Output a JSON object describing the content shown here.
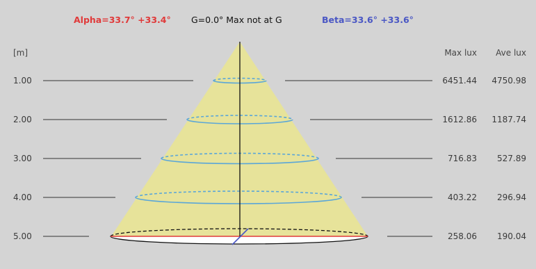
{
  "header": {
    "alpha_label": "Alpha=33.7° +33.4°",
    "center_label": "G=0.0°  Max not  at G",
    "beta_label": "Beta=33.6° +33.6°"
  },
  "table": {
    "distance_unit": "[m]",
    "max_lux_label": "Max lux",
    "ave_lux_label": "Ave lux",
    "rows": [
      {
        "distance": "1.00",
        "max_lux": "6451.44",
        "ave_lux": "4750.98"
      },
      {
        "distance": "2.00",
        "max_lux": "1612.86",
        "ave_lux": "1187.74"
      },
      {
        "distance": "3.00",
        "max_lux": "716.83",
        "ave_lux": "527.89"
      },
      {
        "distance": "4.00",
        "max_lux": "403.22",
        "ave_lux": "296.94"
      },
      {
        "distance": "5.00",
        "max_lux": "258.06",
        "ave_lux": "190.04"
      }
    ]
  },
  "colors": {
    "background": "#d4d4d4",
    "cone_fill": "#e7e39a",
    "ellipse_stroke": "#5aa6d8",
    "alpha_color": "#e03a3a",
    "beta_color": "#4a57c4",
    "text_color": "#3a3a3a"
  }
}
